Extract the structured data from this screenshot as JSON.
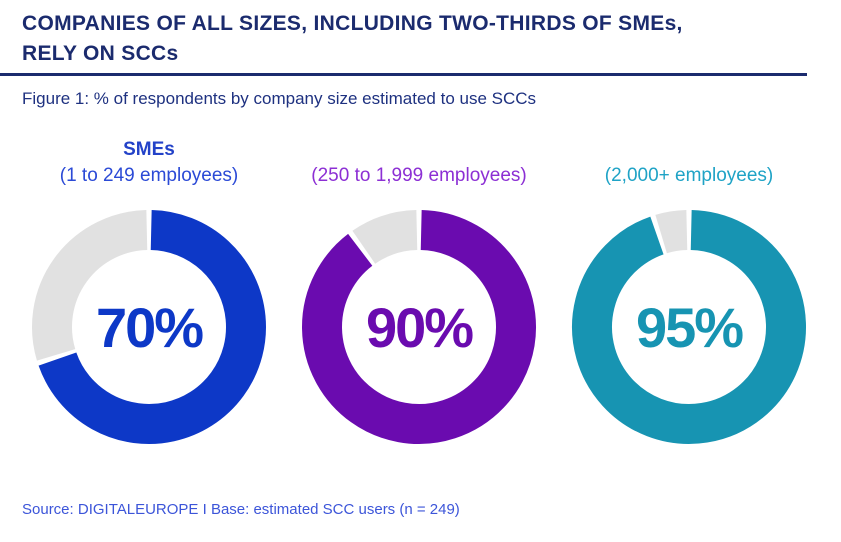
{
  "header": {
    "title": "COMPANIES OF ALL SIZES, INCLUDING TWO-THIRDS OF SMEs,\nRELY ON SCCs"
  },
  "chart_data": {
    "type": "donut",
    "title": "Figure 1: % of respondents by company size estimated to use SCCs",
    "value_suffix": "%",
    "remainder_color": "#e1e1e1",
    "legend_position": "above-each-donut",
    "series": [
      {
        "name": "SMEs",
        "category": "(1 to 249 employees)",
        "value": 70,
        "color": "#0d38c7",
        "label_color": "#2b4ad6",
        "name_color": "#2342c8"
      },
      {
        "name": "",
        "category": "(250 to 1,999 employees)",
        "value": 90,
        "color": "#6a0baf",
        "label_color": "#8c2fd4"
      },
      {
        "name": "",
        "category": "(2,000+ employees)",
        "value": 95,
        "color": "#1794b2",
        "label_color": "#1fa3c6"
      }
    ]
  },
  "footer": {
    "source": "Source: DIGITALEUROPE I Base: estimated SCC users (n = 249)"
  },
  "colors": {
    "heading": "#1b2b6e",
    "divider": "#1b2b6e",
    "caption": "#1e3180",
    "source": "#3c55d9",
    "background": "#ffffff"
  }
}
